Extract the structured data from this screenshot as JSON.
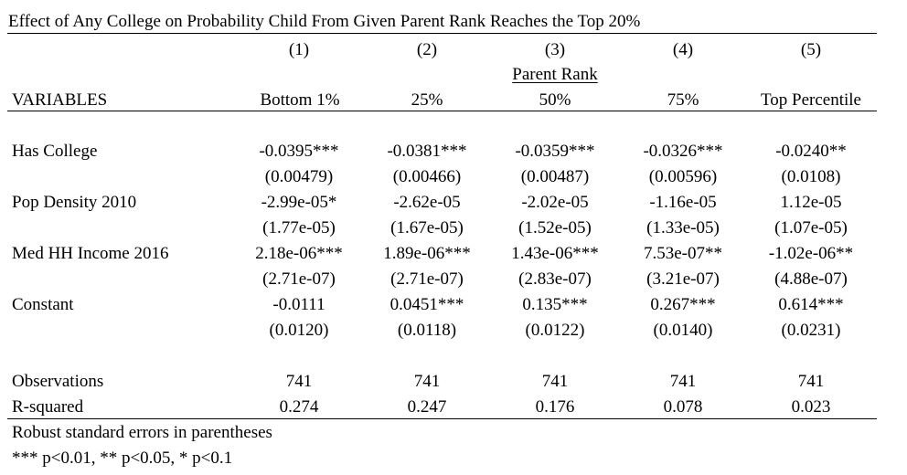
{
  "title": "Effect of Any College on Probability Child From Given Parent Rank Reaches the Top 20%",
  "columns": [
    {
      "num": "(1)",
      "header": "Bottom 1%"
    },
    {
      "num": "(2)",
      "header": "25%"
    },
    {
      "num": "(3)",
      "header": "50%"
    },
    {
      "num": "(4)",
      "header": "75%"
    },
    {
      "num": "(5)",
      "header": "Top Percentile"
    }
  ],
  "group_label": "Parent Rank",
  "variables_label": "VARIABLES",
  "rows": [
    {
      "label": "Has College",
      "coef": [
        "-0.0395***",
        "-0.0381***",
        "-0.0359***",
        "-0.0326***",
        "-0.0240**"
      ],
      "se": [
        "(0.00479)",
        "(0.00466)",
        "(0.00487)",
        "(0.00596)",
        "(0.0108)"
      ]
    },
    {
      "label": "Pop Density 2010",
      "coef": [
        "-2.99e-05*",
        "-2.62e-05",
        "-2.02e-05",
        "-1.16e-05",
        "1.12e-05"
      ],
      "se": [
        "(1.77e-05)",
        "(1.67e-05)",
        "(1.52e-05)",
        "(1.33e-05)",
        "(1.07e-05)"
      ]
    },
    {
      "label": "Med HH Income 2016",
      "coef": [
        "2.18e-06***",
        "1.89e-06***",
        "1.43e-06***",
        "7.53e-07**",
        "-1.02e-06**"
      ],
      "se": [
        "(2.71e-07)",
        "(2.71e-07)",
        "(2.83e-07)",
        "(3.21e-07)",
        "(4.88e-07)"
      ]
    },
    {
      "label": "Constant",
      "coef": [
        "-0.0111",
        "0.0451***",
        "0.135***",
        "0.267***",
        "0.614***"
      ],
      "se": [
        "(0.0120)",
        "(0.0118)",
        "(0.0122)",
        "(0.0140)",
        "(0.0231)"
      ]
    }
  ],
  "stats": [
    {
      "label": "Observations",
      "values": [
        "741",
        "741",
        "741",
        "741",
        "741"
      ]
    },
    {
      "label": "R-squared",
      "values": [
        "0.274",
        "0.247",
        "0.176",
        "0.078",
        "0.023"
      ]
    }
  ],
  "notes": [
    "Robust standard errors in parentheses",
    "*** p<0.01, ** p<0.05, * p<0.1"
  ]
}
